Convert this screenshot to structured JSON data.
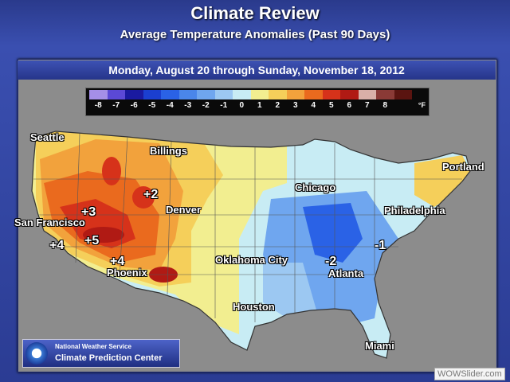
{
  "header": {
    "title": "Climate Review",
    "subtitle": "Average Temperature Anomalies (Past 90 Days)"
  },
  "date_range": "Monday, August 20 through Sunday, November 18, 2012",
  "legend": {
    "labels": [
      "-8",
      "-7",
      "-6",
      "-5",
      "-4",
      "-3",
      "-2",
      "-1",
      "0",
      "1",
      "2",
      "3",
      "4",
      "5",
      "6",
      "7",
      "8"
    ],
    "unit": "°F",
    "colors": [
      "#a58fe8",
      "#5b49d6",
      "#1a1aa0",
      "#1b3fd0",
      "#2a62e6",
      "#4a86ea",
      "#6fa6ef",
      "#9cc8f2",
      "#c8ecf4",
      "#f2ee90",
      "#f5cf5a",
      "#f2a23c",
      "#ea6a1e",
      "#d6321a",
      "#b01a14",
      "#d9b0a8",
      "#8a3a36",
      "#5a1410"
    ]
  },
  "cities": [
    {
      "name": "Seattle"
    },
    {
      "name": "Billings"
    },
    {
      "name": "Portland"
    },
    {
      "name": "Chicago"
    },
    {
      "name": "San Francisco"
    },
    {
      "name": "Denver"
    },
    {
      "name": "Philadelphia"
    },
    {
      "name": "Oklahoma City"
    },
    {
      "name": "Phoenix"
    },
    {
      "name": "Atlanta"
    },
    {
      "name": "Houston"
    },
    {
      "name": "Miami"
    }
  ],
  "anomalies": [
    {
      "label": "+2"
    },
    {
      "label": "+3"
    },
    {
      "label": "+5"
    },
    {
      "label": "+4"
    },
    {
      "label": "+4"
    },
    {
      "label": "-2"
    },
    {
      "label": "-1"
    }
  ],
  "credit": {
    "line1": "National Weather Service",
    "line2": "Climate Prediction Center"
  },
  "watermark": "WOWSlider.com"
}
